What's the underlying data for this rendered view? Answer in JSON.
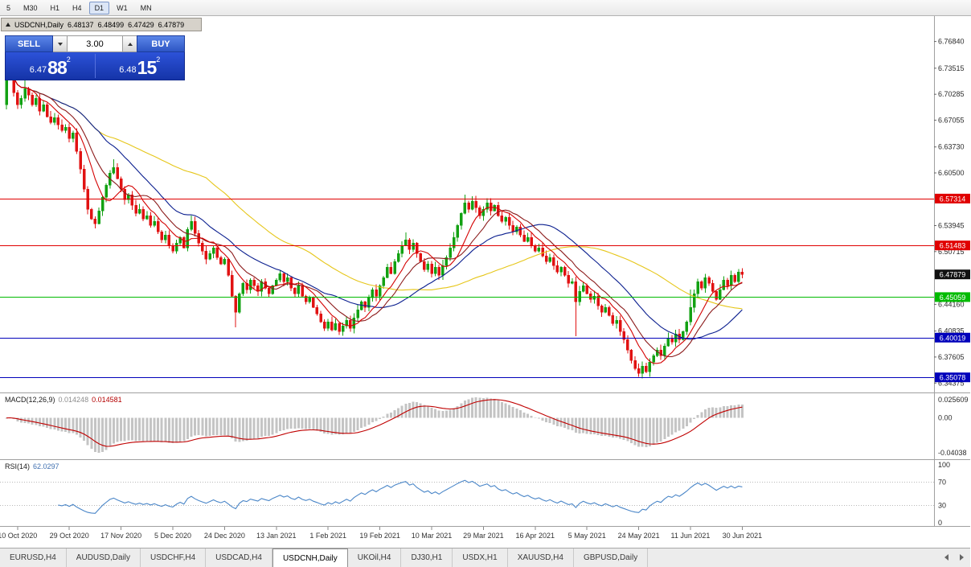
{
  "toolbar": {
    "timeframes": [
      {
        "label": "5",
        "active": false
      },
      {
        "label": "M30",
        "active": false
      },
      {
        "label": "H1",
        "active": false
      },
      {
        "label": "H4",
        "active": false
      },
      {
        "label": "D1",
        "active": true
      },
      {
        "label": "W1",
        "active": false
      },
      {
        "label": "MN",
        "active": false
      }
    ]
  },
  "chart_header": {
    "symbol": "USDCNH,Daily",
    "open": "6.48137",
    "high": "6.48499",
    "low": "6.47429",
    "close": "6.47879"
  },
  "trade_panel": {
    "sell_label": "SELL",
    "buy_label": "BUY",
    "volume": "3.00",
    "sell_price": {
      "prefix": "6.47",
      "big": "88",
      "sup": "2"
    },
    "buy_price": {
      "prefix": "6.48",
      "big": "15",
      "sup": "2"
    }
  },
  "price_axis": {
    "ticks": [
      "6.76840",
      "6.73515",
      "6.70285",
      "6.67055",
      "6.63730",
      "6.60500",
      "6.53945",
      "6.50715",
      "6.44160",
      "6.40835",
      "6.37605",
      "6.34375"
    ],
    "current": {
      "value": 6.47879,
      "label": "6.47879",
      "color": "#111111"
    }
  },
  "levels": [
    {
      "value": 6.57314,
      "label": "6.57314",
      "color": "#e00000"
    },
    {
      "value": 6.51483,
      "label": "6.51483",
      "color": "#e00000"
    },
    {
      "value": 6.45059,
      "label": "6.45059",
      "color": "#00bb00"
    },
    {
      "value": 6.40019,
      "label": "6.40019",
      "color": "#0202bb"
    },
    {
      "value": 6.35078,
      "label": "6.35078",
      "color": "#0202bb"
    }
  ],
  "macd_panel": {
    "name": "MACD(12,26,9)",
    "value_main": "0.014248",
    "value_signal": "0.014581",
    "axis": [
      "0.025609",
      "0.00",
      "-0.04038"
    ]
  },
  "rsi_panel": {
    "name": "RSI(14)",
    "value": "62.0297",
    "axis": [
      100,
      70,
      30,
      0
    ],
    "levels": [
      70,
      30
    ]
  },
  "date_axis": {
    "labels": [
      "10 Oct 2020",
      "29 Oct 2020",
      "17 Nov 2020",
      "5 Dec 2020",
      "24 Dec 2020",
      "13 Jan 2021",
      "1 Feb 2021",
      "19 Feb 2021",
      "10 Mar 2021",
      "29 Mar 2021",
      "16 Apr 2021",
      "5 May 2021",
      "24 May 2021",
      "11 Jun 2021",
      "30 Jun 2021"
    ]
  },
  "tabs": {
    "items": [
      {
        "label": "EURUSD,H4",
        "active": false
      },
      {
        "label": "AUDUSD,Daily",
        "active": false
      },
      {
        "label": "USDCHF,H4",
        "active": false
      },
      {
        "label": "USDCAD,H4",
        "active": false
      },
      {
        "label": "USDCNH,Daily",
        "active": true
      },
      {
        "label": "UKOil,H4",
        "active": false
      },
      {
        "label": "DJ30,H1",
        "active": false
      },
      {
        "label": "USDX,H1",
        "active": false
      },
      {
        "label": "XAUUSD,H4",
        "active": false
      },
      {
        "label": "GBPUSD,Daily",
        "active": false
      }
    ]
  },
  "colors": {
    "bull": "#12a112",
    "bear": "#e11212",
    "macd_hist": "#c4c4c4",
    "macd_signal": "#c00000",
    "rsi_line": "#4a86c8",
    "axis_text": "#2a2a2a",
    "separator": "#a0a0a0"
  },
  "chart_data": {
    "type": "candlestick",
    "symbol": "USDCNH",
    "timeframe": "Daily",
    "price_top": 6.8,
    "price_bottom": 6.333,
    "open0": 6.69,
    "date_start_index": 3,
    "date_step": 14,
    "closes": [
      6.728,
      6.736,
      6.705,
      6.69,
      6.698,
      6.71,
      6.702,
      6.69,
      6.698,
      6.682,
      6.69,
      6.675,
      6.668,
      6.674,
      6.665,
      6.658,
      6.662,
      6.648,
      6.655,
      6.632,
      6.61,
      6.585,
      6.56,
      6.548,
      6.542,
      6.558,
      6.575,
      6.59,
      6.605,
      6.612,
      6.598,
      6.585,
      6.572,
      6.578,
      6.565,
      6.555,
      6.56,
      6.548,
      6.552,
      6.54,
      6.545,
      6.532,
      6.522,
      6.528,
      6.515,
      6.508,
      6.518,
      6.525,
      6.512,
      6.535,
      6.545,
      6.53,
      6.518,
      6.508,
      6.498,
      6.505,
      6.512,
      6.5,
      6.492,
      6.498,
      6.478,
      6.452,
      6.432,
      6.455,
      6.468,
      6.46,
      6.472,
      6.465,
      6.458,
      6.47,
      6.462,
      6.455,
      6.465,
      6.472,
      6.48,
      6.47,
      6.475,
      6.462,
      6.455,
      6.465,
      6.452,
      6.445,
      6.45,
      6.438,
      6.43,
      6.42,
      6.412,
      6.42,
      6.41,
      6.418,
      6.408,
      6.415,
      6.422,
      6.412,
      6.425,
      6.435,
      6.445,
      6.438,
      6.45,
      6.46,
      6.452,
      6.465,
      6.475,
      6.488,
      6.48,
      6.495,
      6.505,
      6.515,
      6.522,
      6.51,
      6.518,
      6.505,
      6.495,
      6.485,
      6.492,
      6.48,
      6.488,
      6.478,
      6.49,
      6.5,
      6.512,
      6.525,
      6.54,
      6.555,
      6.568,
      6.56,
      6.57,
      6.562,
      6.552,
      6.56,
      6.568,
      6.558,
      6.565,
      6.552,
      6.545,
      6.55,
      6.54,
      6.532,
      6.538,
      6.528,
      6.52,
      6.525,
      6.515,
      6.508,
      6.512,
      6.502,
      6.495,
      6.5,
      6.49,
      6.482,
      6.488,
      6.478,
      6.468,
      6.47,
      6.445,
      6.458,
      6.465,
      6.455,
      6.448,
      6.452,
      6.44,
      6.432,
      6.438,
      6.428,
      6.418,
      6.422,
      6.408,
      6.398,
      6.385,
      6.372,
      6.362,
      6.356,
      6.365,
      6.358,
      6.37,
      6.378,
      6.385,
      6.378,
      6.39,
      6.4,
      6.395,
      6.405,
      6.398,
      6.408,
      6.42,
      6.438,
      6.455,
      6.47,
      6.462,
      6.475,
      6.468,
      6.458,
      6.448,
      6.46,
      6.472,
      6.465,
      6.478,
      6.47,
      6.482,
      6.479
    ],
    "wick_overrides": {
      "0": {
        "high": 6.738,
        "low": 6.684
      },
      "1": {
        "high": 6.741
      },
      "5": {
        "high": 6.733
      },
      "24": {
        "low": 6.536
      },
      "29": {
        "high": 6.622
      },
      "50": {
        "high": 6.552
      },
      "62": {
        "low": 6.413
      },
      "90": {
        "low": 6.4035
      },
      "108": {
        "high": 6.531
      },
      "124": {
        "high": 6.578
      },
      "126": {
        "high": 6.576
      },
      "154": {
        "low": 6.402
      },
      "171": {
        "low": 6.3515
      },
      "185": {
        "high": 6.46
      }
    },
    "mas": [
      {
        "period": 55,
        "color": "#e6c619"
      },
      {
        "period": 26,
        "color": "#0b1f8f"
      },
      {
        "period": 13,
        "color": "#8b1a1a"
      },
      {
        "period": 8,
        "color": "#d40000"
      }
    ],
    "macd_params": [
      12,
      26,
      9
    ],
    "rsi_period": 14
  }
}
